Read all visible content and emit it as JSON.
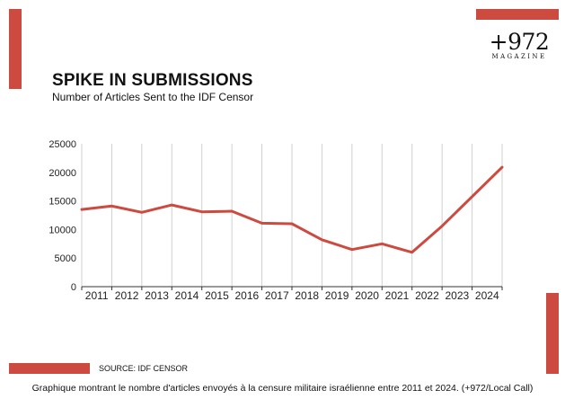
{
  "header": {
    "title": "SPIKE IN SUBMISSIONS",
    "subtitle": "Number of Articles Sent to the IDF Censor"
  },
  "logo": {
    "mark": "+972",
    "sub": "MAGAZINE"
  },
  "footer": {
    "source": "SOURCE: IDF CENSOR",
    "caption": "Graphique montrant le nombre d'articles envoyés à la censure militaire israélienne entre 2011 et 2024. (+972/Local Call)"
  },
  "colors": {
    "accent": "#cd4a40",
    "grid": "#d0d0d0",
    "text": "#222222"
  },
  "chart_data": {
    "type": "line",
    "title": "SPIKE IN SUBMISSIONS",
    "subtitle": "Number of Articles Sent to the IDF Censor",
    "xlabel": "",
    "ylabel": "",
    "ylim": [
      0,
      25000
    ],
    "yticks": [
      0,
      5000,
      10000,
      15000,
      20000,
      25000
    ],
    "x": [
      "2011",
      "2012",
      "2013",
      "2014",
      "2015",
      "2016",
      "2017",
      "2018",
      "2019",
      "2020",
      "2021",
      "2022",
      "2023",
      "2024"
    ],
    "series": [
      {
        "values": [
          13500,
          14100,
          13000,
          14300,
          13100,
          13200,
          11100,
          11000,
          8200,
          6500,
          7500,
          6000,
          10600,
          20900
        ]
      }
    ],
    "grid": {
      "vertical": true,
      "horizontal": false
    },
    "legend": "none"
  }
}
